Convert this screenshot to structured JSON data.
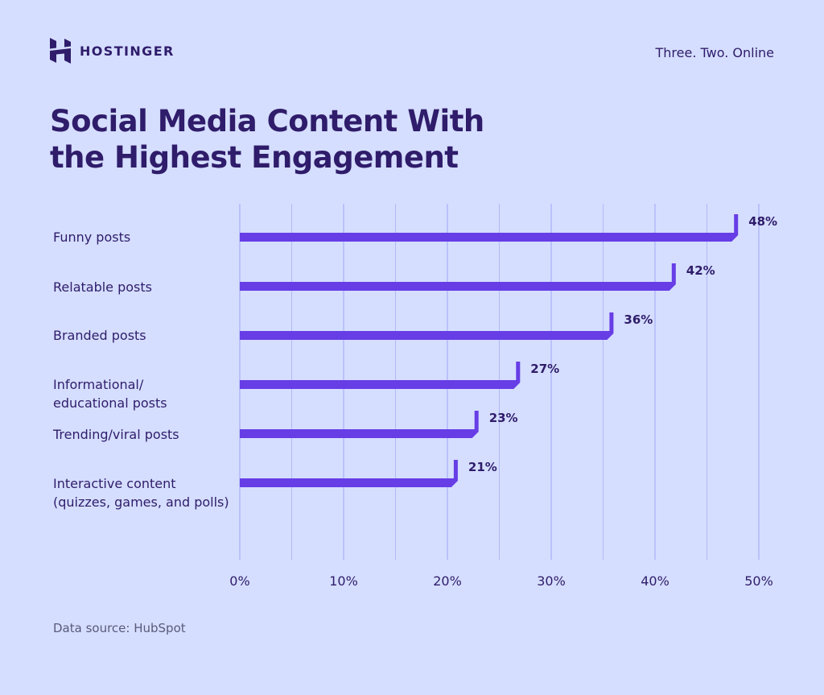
{
  "header": {
    "brand": "HOSTINGER",
    "tagline": "Three. Two. Online"
  },
  "title_lines": [
    "Social Media Content With",
    "the Highest Engagement"
  ],
  "colors": {
    "background": "#d5deff",
    "bar": "#673de6",
    "text": "#2f1c6a",
    "grid": "#a9b1f6"
  },
  "chart_data": {
    "type": "bar",
    "orientation": "horizontal",
    "title": "Social Media Content With the Highest Engagement",
    "categories": [
      "Funny posts",
      "Relatable posts",
      "Branded posts",
      "Informational/\neducational posts",
      "Trending/viral posts",
      "Interactive content\n(quizzes, games, and polls)"
    ],
    "values": [
      48,
      42,
      36,
      27,
      23,
      21
    ],
    "value_labels": [
      "48%",
      "42%",
      "36%",
      "27%",
      "23%",
      "21%"
    ],
    "xlim": [
      0,
      50
    ],
    "x_ticks": [
      "0%",
      "10%",
      "20%",
      "30%",
      "40%",
      "50%"
    ],
    "grid": true
  },
  "footer": {
    "source": "Data source: HubSpot"
  }
}
